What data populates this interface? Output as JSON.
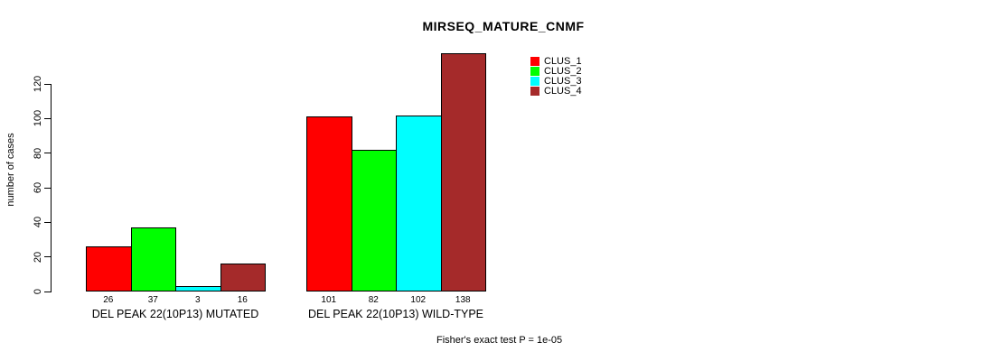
{
  "chart_data": {
    "type": "bar",
    "title": "MIRSEQ_MATURE_CNMF",
    "ylabel": "number of cases",
    "yticks": [
      0,
      20,
      40,
      60,
      80,
      100,
      120
    ],
    "ylim": [
      0,
      140
    ],
    "grid": false,
    "legend_position": "top-right",
    "categories": [
      "DEL PEAK 22(10P13) MUTATED",
      "DEL PEAK 22(10P13) WILD-TYPE"
    ],
    "series": [
      {
        "name": "CLUS_1",
        "color": "#ff0000",
        "values": [
          26,
          101
        ]
      },
      {
        "name": "CLUS_2",
        "color": "#00ff00",
        "values": [
          37,
          82
        ]
      },
      {
        "name": "CLUS_3",
        "color": "#00ffff",
        "values": [
          3,
          102
        ]
      },
      {
        "name": "CLUS_4",
        "color": "#a52a2a",
        "values": [
          16,
          138
        ]
      }
    ],
    "bar_value_labels": [
      [
        26,
        37,
        3,
        16
      ],
      [
        101,
        82,
        102,
        138
      ]
    ]
  },
  "footer": {
    "text": "Fisher's exact test P = 1e-05"
  }
}
